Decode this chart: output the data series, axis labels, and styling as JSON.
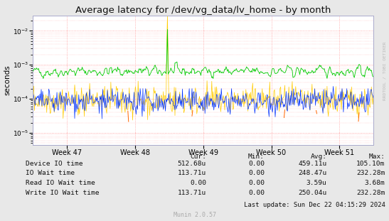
{
  "title": "Average latency for /dev/vg_data/lv_home - by month",
  "ylabel": "seconds",
  "watermark": "RRDTOOL / TOBI OETIKER",
  "munin_version": "Munin 2.0.57",
  "last_update": "Last update: Sun Dec 22 04:15:29 2024",
  "x_tick_labels": [
    "Week 47",
    "Week 48",
    "Week 49",
    "Week 50",
    "Week 51"
  ],
  "background_color": "#e8e8e8",
  "plot_bg_color": "#ffffff",
  "grid_color": "#ff9999",
  "legend": [
    {
      "label": "Device IO time",
      "color": "#00cc00"
    },
    {
      "label": "IO Wait time",
      "color": "#0033ff"
    },
    {
      "label": "Read IO Wait time",
      "color": "#ff6600"
    },
    {
      "label": "Write IO Wait time",
      "color": "#ffcc00"
    }
  ],
  "stats_headers": [
    "Cur:",
    "Min:",
    "Avg:",
    "Max:"
  ],
  "stats_rows": [
    [
      "Device IO time",
      "512.68u",
      "0.00",
      "459.11u",
      "105.10m"
    ],
    [
      "IO Wait time",
      "113.71u",
      "0.00",
      "248.47u",
      "232.28m"
    ],
    [
      "Read IO Wait time",
      "0.00",
      "0.00",
      "3.59u",
      "3.68m"
    ],
    [
      "Write IO Wait time",
      "113.71u",
      "0.00",
      "250.04u",
      "232.28m"
    ]
  ],
  "n_points": 500,
  "seed": 42
}
